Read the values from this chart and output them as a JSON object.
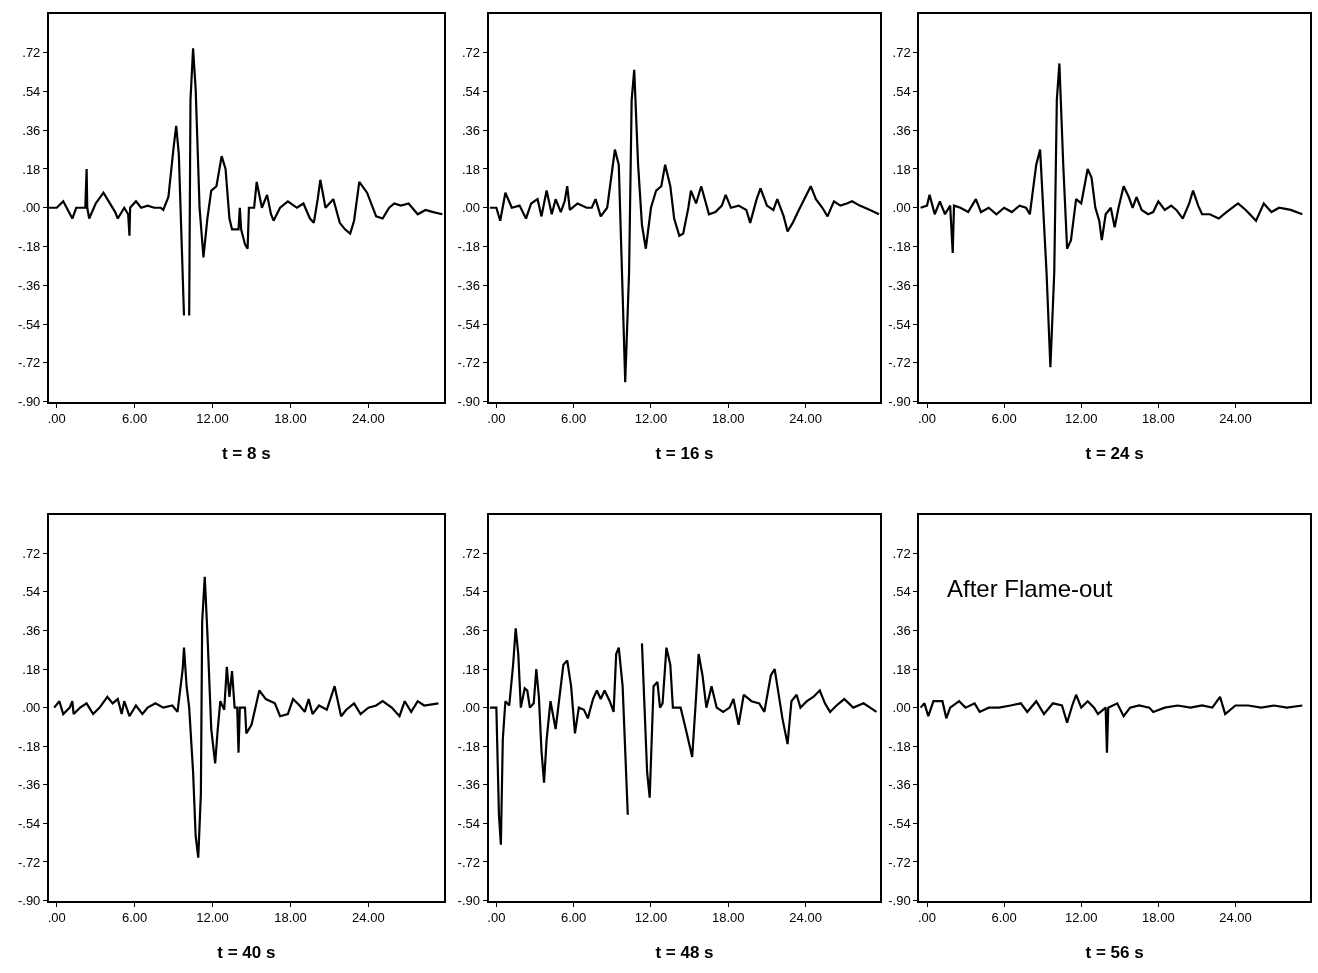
{
  "chart_data": [
    {
      "type": "line",
      "xlabel": "t = 8 s",
      "color": "#000000",
      "xlim": [
        -0.6,
        29.8
      ],
      "ylim": [
        -0.9,
        0.9
      ],
      "xticks": [
        {
          "value": 0,
          "label": ".00"
        },
        {
          "value": 6,
          "label": "6.00"
        },
        {
          "value": 12,
          "label": "12.00"
        },
        {
          "value": 18,
          "label": "18.00"
        },
        {
          "value": 24,
          "label": "24.00"
        }
      ],
      "yticks": [
        {
          "value": 0.72,
          "label": ".72"
        },
        {
          "value": 0.54,
          "label": ".54"
        },
        {
          "value": 0.36,
          "label": ".36"
        },
        {
          "value": 0.18,
          "label": ".18"
        },
        {
          "value": 0,
          "label": ".00"
        },
        {
          "value": -0.18,
          "label": "-.18"
        },
        {
          "value": -0.36,
          "label": "-.36"
        },
        {
          "value": -0.54,
          "label": "-.54"
        },
        {
          "value": -0.72,
          "label": "-.72"
        },
        {
          "value": -0.9,
          "label": "-.90"
        }
      ],
      "x": [
        -0.6,
        0,
        0.5,
        1.2,
        1.5,
        2.2,
        2.3,
        2.35,
        2.5,
        3,
        3.6,
        4,
        4.5,
        4.7,
        5.2,
        5.5,
        5.6,
        5.65,
        6.1,
        6.5,
        7,
        7.5,
        8,
        8.2,
        8.6,
        9,
        9.2,
        9.4,
        9.8,
        9.9,
        10.1,
        10.2,
        10.3,
        10.5,
        10.7,
        11,
        11.3,
        11.6,
        11.9,
        12.3,
        12.7,
        13,
        13.3,
        13.5,
        14,
        14.1,
        14.2,
        14.5,
        14.7,
        14.8,
        15.2,
        15.4,
        15.8,
        16.2,
        16.5,
        16.7,
        17.2,
        17.8,
        18.5,
        19,
        19.5,
        19.8,
        20.1,
        20.3,
        20.7,
        21.3,
        21.8,
        22.2,
        22.6,
        22.9,
        23.3,
        23.9,
        24.6,
        25.1,
        25.6,
        26,
        26.5,
        27.1,
        27.8,
        28.4,
        29,
        29.7
      ],
      "values": [
        0,
        0,
        0.03,
        -0.05,
        0,
        0,
        0.18,
        0,
        -0.05,
        0.02,
        0.07,
        0.03,
        -0.02,
        -0.05,
        0,
        -0.03,
        -0.13,
        0,
        0.03,
        0,
        0.01,
        0,
        0,
        -0.01,
        0.05,
        0.28,
        0.38,
        0.25,
        -0.5,
        null,
        null,
        -0.5,
        0.5,
        0.74,
        0.55,
        0,
        -0.23,
        -0.05,
        0.08,
        0.1,
        0.24,
        0.18,
        -0.05,
        -0.1,
        -0.1,
        0,
        -0.1,
        -0.17,
        -0.19,
        0,
        0,
        0.12,
        0,
        0.06,
        -0.03,
        -0.06,
        0,
        0.03,
        0,
        0.02,
        -0.05,
        -0.07,
        0.04,
        0.13,
        0,
        0.04,
        -0.07,
        -0.1,
        -0.12,
        -0.06,
        0.12,
        0.07,
        -0.04,
        -0.05,
        0,
        0.02,
        0.01,
        0.02,
        -0.03,
        -0.01,
        -0.02,
        -0.03
      ]
    },
    {
      "type": "line",
      "xlabel": "t = 16 s",
      "color": "#000000",
      "xlim": [
        -0.6,
        29.8
      ],
      "ylim": [
        -0.9,
        0.9
      ],
      "xticks": [
        {
          "value": 0,
          "label": ".00"
        },
        {
          "value": 6,
          "label": "6.00"
        },
        {
          "value": 12,
          "label": "12.00"
        },
        {
          "value": 18,
          "label": "18.00"
        },
        {
          "value": 24,
          "label": "24.00"
        }
      ],
      "yticks": [
        {
          "value": 0.72,
          "label": ".72"
        },
        {
          "value": 0.54,
          "label": ".54"
        },
        {
          "value": 0.36,
          "label": ".36"
        },
        {
          "value": 0.18,
          "label": ".18"
        },
        {
          "value": 0,
          "label": ".00"
        },
        {
          "value": -0.18,
          "label": "-.18"
        },
        {
          "value": -0.36,
          "label": "-.36"
        },
        {
          "value": -0.54,
          "label": "-.54"
        },
        {
          "value": -0.72,
          "label": "-.72"
        },
        {
          "value": -0.9,
          "label": "-.90"
        }
      ],
      "x": [
        -0.5,
        0,
        0.3,
        0.7,
        1.2,
        1.8,
        2.3,
        2.7,
        3.2,
        3.5,
        3.9,
        4.3,
        4.6,
        5,
        5.3,
        5.5,
        5.7,
        6.3,
        7,
        7.4,
        7.7,
        8.1,
        8.6,
        9,
        9.2,
        9.5,
        9.8,
        10,
        10.3,
        10.5,
        10.7,
        11,
        11.3,
        11.6,
        12,
        12.4,
        12.8,
        13.1,
        13.5,
        13.8,
        14.2,
        14.5,
        14.9,
        15.1,
        15.5,
        15.9,
        16.5,
        17,
        17.5,
        17.8,
        18.2,
        18.8,
        19.4,
        19.7,
        20.2,
        20.5,
        21,
        21.5,
        21.8,
        22.3,
        22.6,
        23,
        23.4,
        24.4,
        24.8,
        25.3,
        25.7,
        26.2,
        26.7,
        27.2,
        27.6,
        28.2,
        29,
        29.7
      ],
      "values": [
        0,
        0,
        -0.06,
        0.07,
        0,
        0.01,
        -0.05,
        0.02,
        0.04,
        -0.04,
        0.08,
        -0.03,
        0.04,
        -0.02,
        0.03,
        0.1,
        -0.01,
        0.02,
        0,
        0,
        0.04,
        -0.04,
        0,
        0.18,
        0.27,
        0.2,
        -0.4,
        -0.81,
        -0.3,
        0.5,
        0.64,
        0.2,
        -0.08,
        -0.19,
        0,
        0.08,
        0.1,
        0.2,
        0.1,
        -0.05,
        -0.13,
        -0.12,
        0,
        0.08,
        0.02,
        0.1,
        -0.03,
        -0.02,
        0.01,
        0.06,
        0,
        0.01,
        -0.01,
        -0.07,
        0.04,
        0.09,
        0.01,
        -0.01,
        0.04,
        -0.04,
        -0.11,
        -0.07,
        -0.02,
        0.1,
        0.04,
        0,
        -0.04,
        0.03,
        0.01,
        0.02,
        0.03,
        0.01,
        -0.01,
        -0.03
      ]
    },
    {
      "type": "line",
      "xlabel": "t = 24 s",
      "color": "#000000",
      "xlim": [
        -0.6,
        29.8
      ],
      "ylim": [
        -0.9,
        0.9
      ],
      "xticks": [
        {
          "value": 0,
          "label": ".00"
        },
        {
          "value": 6,
          "label": "6.00"
        },
        {
          "value": 12,
          "label": "12.00"
        },
        {
          "value": 18,
          "label": "18.00"
        },
        {
          "value": 24,
          "label": "24.00"
        }
      ],
      "yticks": [
        {
          "value": 0.72,
          "label": ".72"
        },
        {
          "value": 0.54,
          "label": ".54"
        },
        {
          "value": 0.36,
          "label": ".36"
        },
        {
          "value": 0.18,
          "label": ".18"
        },
        {
          "value": 0,
          "label": ".00"
        },
        {
          "value": -0.18,
          "label": "-.18"
        },
        {
          "value": -0.36,
          "label": "-.36"
        },
        {
          "value": -0.54,
          "label": "-.54"
        },
        {
          "value": -0.72,
          "label": "-.72"
        },
        {
          "value": -0.9,
          "label": "-.90"
        }
      ],
      "x": [
        -0.5,
        0,
        0.2,
        0.6,
        1,
        1.4,
        1.8,
        2,
        2.1,
        2.6,
        3.2,
        3.8,
        4.2,
        4.8,
        5.4,
        6,
        6.6,
        7.2,
        7.7,
        8,
        8.5,
        8.8,
        9.3,
        9.6,
        9.9,
        10.1,
        10.3,
        10.6,
        10.9,
        11.2,
        11.6,
        12,
        12.5,
        12.8,
        13.1,
        13.4,
        13.6,
        13.9,
        14.3,
        14.6,
        14.9,
        15.3,
        15.7,
        16,
        16.3,
        16.7,
        17.2,
        17.6,
        18,
        18.5,
        19,
        19.4,
        19.9,
        20.4,
        20.7,
        21.1,
        21.4,
        22,
        22.7,
        23.3,
        24.2,
        24.8,
        25.6,
        26.2,
        26.8,
        27.4,
        28.3,
        29.2
      ],
      "values": [
        0,
        0.01,
        0.06,
        -0.03,
        0.03,
        -0.03,
        0.01,
        -0.21,
        0.01,
        0,
        -0.02,
        0.04,
        -0.02,
        0,
        -0.03,
        0,
        -0.02,
        0.01,
        0,
        -0.03,
        0.2,
        0.27,
        -0.3,
        -0.74,
        -0.3,
        0.5,
        0.67,
        0.2,
        -0.19,
        -0.15,
        0.04,
        0.02,
        0.18,
        0.14,
        0,
        -0.06,
        -0.15,
        -0.03,
        0,
        -0.09,
        0,
        0.1,
        0.05,
        0,
        0.05,
        -0.01,
        -0.03,
        -0.02,
        0.03,
        -0.01,
        0.01,
        -0.01,
        -0.05,
        0.02,
        0.08,
        0.01,
        -0.03,
        -0.03,
        -0.05,
        -0.02,
        0.02,
        -0.01,
        -0.06,
        0.02,
        -0.02,
        0,
        -0.01,
        -0.03
      ]
    },
    {
      "type": "line",
      "xlabel": "t = 40 s",
      "color": "#000000",
      "xlim": [
        -0.6,
        29.8
      ],
      "ylim": [
        -0.9,
        0.9
      ],
      "xticks": [
        {
          "value": 0,
          "label": ".00"
        },
        {
          "value": 6,
          "label": "6.00"
        },
        {
          "value": 12,
          "label": "12.00"
        },
        {
          "value": 18,
          "label": "18.00"
        },
        {
          "value": 24,
          "label": "24.00"
        }
      ],
      "yticks": [
        {
          "value": 0.72,
          "label": ".72"
        },
        {
          "value": 0.54,
          "label": ".54"
        },
        {
          "value": 0.36,
          "label": ".36"
        },
        {
          "value": 0.18,
          "label": ".18"
        },
        {
          "value": 0,
          "label": ".00"
        },
        {
          "value": -0.18,
          "label": "-.18"
        },
        {
          "value": -0.36,
          "label": "-.36"
        },
        {
          "value": -0.54,
          "label": "-.54"
        },
        {
          "value": -0.72,
          "label": "-.72"
        },
        {
          "value": -0.9,
          "label": "-.90"
        }
      ],
      "x": [
        -0.2,
        0.2,
        0.5,
        1,
        1.2,
        1.3,
        1.8,
        2.3,
        2.8,
        3.3,
        3.9,
        4.3,
        4.7,
        5,
        5.2,
        5.6,
        6.1,
        6.6,
        7,
        7.6,
        8.2,
        8.9,
        9.3,
        9.7,
        9.8,
        10,
        10.2,
        10.5,
        10.7,
        10.9,
        11.1,
        11.2,
        11.4,
        11.6,
        11.9,
        12.2,
        12.4,
        12.6,
        12.9,
        13.1,
        13.3,
        13.5,
        13.7,
        13.9,
        14,
        14.1,
        14.5,
        14.6,
        15,
        15.3,
        15.6,
        16.1,
        16.8,
        17.2,
        17.8,
        18.2,
        18.7,
        19.1,
        19.4,
        19.7,
        20.2,
        20.8,
        21.4,
        21.9,
        22.3,
        22.9,
        23.4,
        24,
        24.6,
        25.1,
        25.8,
        26.4,
        26.8,
        27.3,
        27.8,
        28.3,
        29.4
      ],
      "values": [
        0,
        0.03,
        -0.03,
        0,
        0.03,
        -0.03,
        0,
        0.02,
        -0.03,
        0,
        0.05,
        0.02,
        0.04,
        -0.03,
        0.03,
        -0.04,
        0.01,
        -0.03,
        0,
        0.02,
        0,
        0.01,
        -0.02,
        0.18,
        0.28,
        0.1,
        0,
        -0.3,
        -0.6,
        -0.7,
        -0.4,
        0.4,
        0.61,
        0.35,
        -0.1,
        -0.26,
        -0.1,
        0.03,
        -0.01,
        0.19,
        0.05,
        0.17,
        0,
        0,
        -0.21,
        0,
        0,
        -0.12,
        -0.08,
        0,
        0.08,
        0.04,
        0.02,
        -0.04,
        -0.03,
        0.04,
        0.01,
        -0.02,
        0.04,
        -0.03,
        0.01,
        -0.01,
        0.1,
        -0.04,
        -0.01,
        0.02,
        -0.03,
        0,
        0.01,
        0.03,
        0,
        -0.04,
        0.03,
        -0.02,
        0.03,
        0.01,
        0.02
      ]
    },
    {
      "type": "line",
      "xlabel": "t = 48 s",
      "color": "#000000",
      "xlim": [
        -0.6,
        29.8
      ],
      "ylim": [
        -0.9,
        0.9
      ],
      "xticks": [
        {
          "value": 0,
          "label": ".00"
        },
        {
          "value": 6,
          "label": "6.00"
        },
        {
          "value": 12,
          "label": "12.00"
        },
        {
          "value": 18,
          "label": "18.00"
        },
        {
          "value": 24,
          "label": "24.00"
        }
      ],
      "yticks": [
        {
          "value": 0.72,
          "label": ".72"
        },
        {
          "value": 0.54,
          "label": ".54"
        },
        {
          "value": 0.36,
          "label": ".36"
        },
        {
          "value": 0.18,
          "label": ".18"
        },
        {
          "value": 0,
          "label": ".00"
        },
        {
          "value": -0.18,
          "label": "-.18"
        },
        {
          "value": -0.36,
          "label": "-.36"
        },
        {
          "value": -0.54,
          "label": "-.54"
        },
        {
          "value": -0.72,
          "label": "-.72"
        },
        {
          "value": -0.9,
          "label": "-.90"
        }
      ],
      "x": [
        -0.5,
        0,
        0.2,
        0.35,
        0.5,
        0.7,
        1,
        1.3,
        1.5,
        1.7,
        1.9,
        2.2,
        2.4,
        2.6,
        2.9,
        3.1,
        3.3,
        3.5,
        3.7,
        3.9,
        4.2,
        4.6,
        4.9,
        5.2,
        5.5,
        5.8,
        6.1,
        6.4,
        6.8,
        7.1,
        7.5,
        7.8,
        8.1,
        8.4,
        8.8,
        9.1,
        9.3,
        9.5,
        9.8,
        10.2,
        10.5,
        10.8,
        10.9,
        11.1,
        11.3,
        11.7,
        11.9,
        12.2,
        12.5,
        12.7,
        12.9,
        13.2,
        13.5,
        13.7,
        14.3,
        14.7,
        15.2,
        15.5,
        15.7,
        16,
        16.3,
        16.7,
        17.1,
        17.6,
        18.1,
        18.4,
        18.8,
        19.2,
        19.8,
        20.4,
        20.8,
        21.3,
        21.6,
        22.2,
        22.6,
        22.9,
        23.3,
        23.6,
        24.1,
        24.6,
        25.1,
        25.5,
        25.9,
        26.4,
        27,
        27.7,
        28.5,
        29.5
      ],
      "values": [
        0,
        0,
        -0.5,
        -0.64,
        -0.15,
        0.03,
        0.01,
        0.2,
        0.37,
        0.25,
        0,
        0.09,
        0.08,
        0,
        0.02,
        0.18,
        0.05,
        -0.2,
        -0.35,
        -0.15,
        0.03,
        -0.1,
        0.05,
        0.2,
        0.22,
        0.1,
        -0.12,
        0,
        -0.01,
        -0.05,
        0.04,
        0.08,
        0.04,
        0.08,
        0.03,
        -0.02,
        0.25,
        0.28,
        0.1,
        -0.5,
        null,
        null,
        null,
        null,
        0.3,
        -0.3,
        -0.42,
        0.1,
        0.12,
        0,
        0.02,
        0.28,
        0.2,
        0,
        0,
        -0.1,
        -0.23,
        0.05,
        0.25,
        0.15,
        0,
        0.1,
        0,
        -0.02,
        0,
        0.04,
        -0.08,
        0.06,
        0.03,
        0.02,
        -0.02,
        0.15,
        0.18,
        -0.05,
        -0.17,
        0.03,
        0.06,
        0,
        0.03,
        0.05,
        0.08,
        0.02,
        -0.02,
        0.01,
        0.04,
        0,
        0.02,
        -0.02
      ]
    },
    {
      "type": "line",
      "xlabel": "t = 56 s",
      "color": "#000000",
      "xlim": [
        -0.6,
        29.8
      ],
      "ylim": [
        -0.9,
        0.9
      ],
      "annotations": [
        "After Flame-out"
      ],
      "xticks": [
        {
          "value": 0,
          "label": ".00"
        },
        {
          "value": 6,
          "label": "6.00"
        },
        {
          "value": 12,
          "label": "12.00"
        },
        {
          "value": 18,
          "label": "18.00"
        },
        {
          "value": 24,
          "label": "24.00"
        }
      ],
      "yticks": [
        {
          "value": 0.72,
          "label": ".72"
        },
        {
          "value": 0.54,
          "label": ".54"
        },
        {
          "value": 0.36,
          "label": ".36"
        },
        {
          "value": 0.18,
          "label": ".18"
        },
        {
          "value": 0,
          "label": ".00"
        },
        {
          "value": -0.18,
          "label": "-.18"
        },
        {
          "value": -0.36,
          "label": "-.36"
        },
        {
          "value": -0.54,
          "label": "-.54"
        },
        {
          "value": -0.72,
          "label": "-.72"
        },
        {
          "value": -0.9,
          "label": "-.90"
        }
      ],
      "x": [
        -0.5,
        -0.2,
        0.1,
        0.5,
        1.2,
        1.5,
        1.8,
        2.5,
        3,
        3.7,
        4.1,
        4.8,
        5.6,
        6.5,
        7.3,
        7.8,
        8.5,
        9.1,
        9.8,
        10.5,
        10.9,
        11.3,
        11.6,
        12,
        12.5,
        13,
        13.3,
        13.9,
        14,
        14.1,
        14.8,
        15.3,
        15.8,
        16.5,
        17.3,
        17.6,
        18.5,
        19.5,
        20.5,
        21.4,
        22.2,
        22.8,
        23.2,
        24,
        25,
        26,
        27,
        28,
        29.2
      ],
      "values": [
        0,
        0.02,
        -0.04,
        0.03,
        0.03,
        -0.05,
        0,
        0.03,
        0,
        0.02,
        -0.02,
        0,
        0,
        0.01,
        0.02,
        -0.02,
        0.03,
        -0.03,
        0.02,
        0.01,
        -0.07,
        0.01,
        0.06,
        0,
        0.03,
        0,
        -0.03,
        0,
        -0.21,
        0,
        0.02,
        -0.04,
        0,
        0.01,
        0,
        -0.02,
        0,
        0.01,
        0,
        0.01,
        0,
        0.05,
        -0.03,
        0.01,
        0.01,
        0,
        0.01,
        0,
        0.01
      ]
    }
  ]
}
